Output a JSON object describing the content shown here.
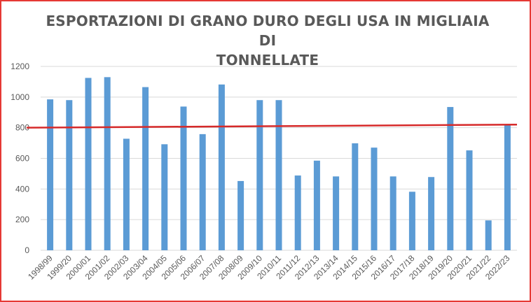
{
  "chart_data": {
    "type": "bar",
    "title": "ESPORTAZIONI DI GRANO DURO DEGLI USA IN MIGLIAIA DI\nTONNELLATE",
    "xlabel": "",
    "ylabel": "",
    "ylim": [
      0,
      1200
    ],
    "yticks": [
      0,
      200,
      400,
      600,
      800,
      1000,
      1200
    ],
    "grid": true,
    "legend": "none",
    "categories": [
      "1998/99",
      "1999/20",
      "2000/01",
      "2001/02",
      "2002/03",
      "2003/04",
      "2004/05",
      "2005/06",
      "2006/07",
      "2007/08",
      "2008/09",
      "2009/10",
      "2010/11",
      "2011/12",
      "2012/13",
      "2013/14",
      "2014/15",
      "2015/16",
      "2016/17",
      "2017/18",
      "2018/19",
      "2019/20",
      "2020/21",
      "2021/22",
      "2022/23"
    ],
    "series": [
      {
        "values": [
          985,
          980,
          1125,
          1130,
          728,
          1065,
          692,
          938,
          758,
          1082,
          452,
          980,
          980,
          488,
          585,
          482,
          698,
          670,
          482,
          382,
          478,
          935,
          652,
          195,
          815
        ]
      }
    ],
    "trend_line": {
      "start": 800,
      "end": 820
    },
    "colors": {
      "bar": "#5b9bd5",
      "trend": "#d62a2a",
      "grid": "#d9d9d9",
      "frame": "#e53935",
      "text": "#595959"
    }
  }
}
